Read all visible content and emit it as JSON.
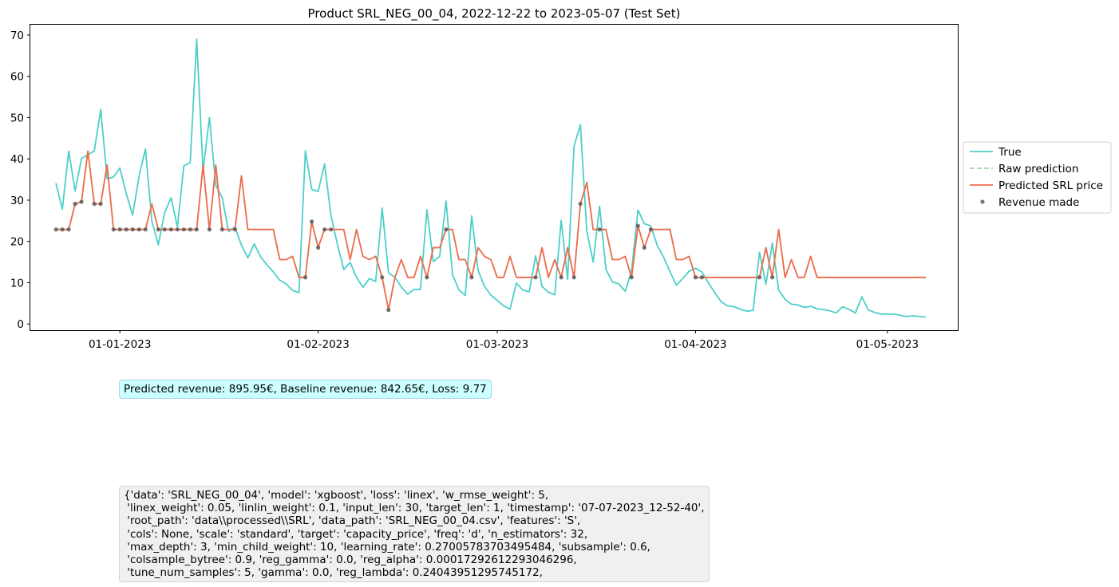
{
  "chart_data": {
    "type": "line",
    "title": "Product SRL_NEG_00_04, 2022-12-22 to 2023-05-07 (Test Set)",
    "xlabel": "",
    "ylabel": "",
    "x_range": [
      "2022-12-18",
      "2023-05-12"
    ],
    "ylim": [
      -1.5,
      72.5
    ],
    "y_ticks": [
      0,
      10,
      20,
      30,
      40,
      50,
      60,
      70
    ],
    "x_ticks": [
      {
        "date": "2023-01-01",
        "label": "01-01-2023"
      },
      {
        "date": "2023-02-01",
        "label": "01-02-2023"
      },
      {
        "date": "2023-03-01",
        "label": "01-03-2023"
      },
      {
        "date": "2023-04-01",
        "label": "01-04-2023"
      },
      {
        "date": "2023-05-01",
        "label": "01-05-2023"
      }
    ],
    "grid": false,
    "legend_position": "center-right outside",
    "start_date": "2022-12-22",
    "series": [
      {
        "name": "True",
        "color": "#4dcfc9",
        "style": "solid",
        "values": [
          34.1,
          27.8,
          41.9,
          32.2,
          40.1,
          41.0,
          41.9,
          52.0,
          35.2,
          35.6,
          37.8,
          31.6,
          26.4,
          35.8,
          42.4,
          24.9,
          19.2,
          27.0,
          30.6,
          23.5,
          38.3,
          39.1,
          69.0,
          37.2,
          50.0,
          33.6,
          30.6,
          22.4,
          23.5,
          19.1,
          16.0,
          19.4,
          16.3,
          14.3,
          12.6,
          10.6,
          9.7,
          8.1,
          7.6,
          42.0,
          32.6,
          32.1,
          38.8,
          26.4,
          19.3,
          13.2,
          14.9,
          11.3,
          8.9,
          11.0,
          10.3,
          28.1,
          12.4,
          11.3,
          9.0,
          7.2,
          8.4,
          8.4,
          27.7,
          15.1,
          16.4,
          29.8,
          12.0,
          8.3,
          6.9,
          26.2,
          13.0,
          9.1,
          7.0,
          5.7,
          4.4,
          3.6,
          9.9,
          8.2,
          7.8,
          16.5,
          9.1,
          7.7,
          7.1,
          25.1,
          10.8,
          43.1,
          48.3,
          22.5,
          15.0,
          28.5,
          13.2,
          10.2,
          9.7,
          7.9,
          12.9,
          27.6,
          24.3,
          23.8,
          19.1,
          16.2,
          12.7,
          9.4,
          11.0,
          12.8,
          13.5,
          12.6,
          10.0,
          7.6,
          5.4,
          4.4,
          4.2,
          3.6,
          3.1,
          3.3,
          17.4,
          9.6,
          19.6,
          8.2,
          6.0,
          4.8,
          4.6,
          4.0,
          4.3,
          3.7,
          3.5,
          3.2,
          2.7,
          4.2,
          3.5,
          2.7,
          6.6,
          3.4,
          2.8,
          2.4,
          2.4,
          2.4,
          2.1,
          1.8,
          2.0,
          1.8,
          1.7
        ]
      },
      {
        "name": "Raw prediction",
        "color": "#a8d4a8",
        "style": "dashed",
        "values": [
          22.9,
          22.9,
          22.9,
          29.1,
          29.6,
          41.9,
          29.1,
          29.1,
          38.5,
          22.9,
          22.9,
          22.9,
          22.9,
          22.9,
          22.9,
          29.1,
          22.9,
          22.9,
          22.9,
          22.9,
          22.9,
          22.9,
          22.9,
          38.5,
          22.9,
          38.5,
          22.9,
          22.9,
          22.9,
          35.9,
          22.9,
          22.9,
          22.9,
          22.9,
          22.9,
          15.6,
          15.6,
          16.4,
          11.3,
          11.3,
          24.8,
          18.5,
          22.9,
          22.9,
          22.9,
          22.9,
          15.6,
          22.9,
          16.4,
          15.6,
          16.4,
          11.3,
          3.4,
          11.3,
          15.6,
          11.3,
          11.3,
          16.4,
          11.3,
          18.5,
          18.5,
          22.9,
          22.9,
          15.6,
          15.6,
          11.3,
          18.5,
          16.4,
          15.6,
          11.3,
          11.3,
          16.4,
          11.3,
          11.3,
          11.3,
          11.3,
          18.5,
          11.3,
          15.6,
          11.3,
          18.5,
          11.3,
          29.1,
          34.3,
          22.9,
          22.9,
          22.9,
          15.6,
          15.6,
          16.4,
          11.3,
          23.8,
          18.5,
          22.9,
          22.9,
          22.9,
          22.9,
          15.6,
          15.6,
          16.4,
          11.3,
          11.3,
          11.3,
          11.3,
          11.3,
          11.3,
          11.3,
          11.3,
          11.3,
          11.3,
          11.3,
          18.5,
          11.3,
          22.9,
          11.3,
          15.6,
          11.3,
          11.3,
          16.4,
          11.3,
          11.3,
          11.3,
          11.3,
          11.3,
          11.3,
          11.3,
          11.3,
          11.3,
          11.3,
          11.3,
          11.3,
          11.3,
          11.3,
          11.3,
          11.3,
          11.3,
          11.3
        ]
      },
      {
        "name": "Predicted SRL price",
        "color": "#ee6c4d",
        "style": "solid",
        "values": [
          22.9,
          22.9,
          22.9,
          29.1,
          29.6,
          41.9,
          29.1,
          29.1,
          38.5,
          22.9,
          22.9,
          22.9,
          22.9,
          22.9,
          22.9,
          29.1,
          22.9,
          22.9,
          22.9,
          22.9,
          22.9,
          22.9,
          22.9,
          38.5,
          22.9,
          38.5,
          22.9,
          22.9,
          22.9,
          35.9,
          22.9,
          22.9,
          22.9,
          22.9,
          22.9,
          15.6,
          15.6,
          16.4,
          11.3,
          11.3,
          24.8,
          18.5,
          22.9,
          22.9,
          22.9,
          22.9,
          15.6,
          22.9,
          16.4,
          15.6,
          16.4,
          11.3,
          3.4,
          11.3,
          15.6,
          11.3,
          11.3,
          16.4,
          11.3,
          18.5,
          18.5,
          22.9,
          22.9,
          15.6,
          15.6,
          11.3,
          18.5,
          16.4,
          15.6,
          11.3,
          11.3,
          16.4,
          11.3,
          11.3,
          11.3,
          11.3,
          18.5,
          11.3,
          15.6,
          11.3,
          18.5,
          11.3,
          29.1,
          34.3,
          22.9,
          22.9,
          22.9,
          15.6,
          15.6,
          16.4,
          11.3,
          23.8,
          18.5,
          22.9,
          22.9,
          22.9,
          22.9,
          15.6,
          15.6,
          16.4,
          11.3,
          11.3,
          11.3,
          11.3,
          11.3,
          11.3,
          11.3,
          11.3,
          11.3,
          11.3,
          11.3,
          18.5,
          11.3,
          22.9,
          11.3,
          15.6,
          11.3,
          11.3,
          16.4,
          11.3,
          11.3,
          11.3,
          11.3,
          11.3,
          11.3,
          11.3,
          11.3,
          11.3,
          11.3,
          11.3,
          11.3,
          11.3,
          11.3,
          11.3,
          11.3,
          11.3,
          11.3
        ]
      },
      {
        "name": "Revenue made",
        "color": "#555555",
        "style": "markers",
        "points": [
          [
            0,
            22.9
          ],
          [
            1,
            22.9
          ],
          [
            2,
            22.9
          ],
          [
            3,
            29.1
          ],
          [
            4,
            29.6
          ],
          [
            6,
            29.1
          ],
          [
            7,
            29.1
          ],
          [
            9,
            22.9
          ],
          [
            10,
            22.9
          ],
          [
            11,
            22.9
          ],
          [
            12,
            22.9
          ],
          [
            13,
            22.9
          ],
          [
            14,
            22.9
          ],
          [
            16,
            22.9
          ],
          [
            17,
            22.9
          ],
          [
            18,
            22.9
          ],
          [
            19,
            22.9
          ],
          [
            20,
            22.9
          ],
          [
            21,
            22.9
          ],
          [
            22,
            22.9
          ],
          [
            24,
            22.9
          ],
          [
            26,
            22.9
          ],
          [
            28,
            22.9
          ],
          [
            39,
            11.3
          ],
          [
            40,
            24.8
          ],
          [
            41,
            18.5
          ],
          [
            42,
            22.9
          ],
          [
            43,
            22.9
          ],
          [
            51,
            11.3
          ],
          [
            52,
            3.4
          ],
          [
            58,
            11.3
          ],
          [
            61,
            22.9
          ],
          [
            65,
            11.3
          ],
          [
            75,
            11.3
          ],
          [
            79,
            11.3
          ],
          [
            81,
            11.3
          ],
          [
            82,
            29.1
          ],
          [
            85,
            22.9
          ],
          [
            90,
            11.3
          ],
          [
            91,
            23.8
          ],
          [
            92,
            18.5
          ],
          [
            93,
            22.9
          ],
          [
            100,
            11.3
          ],
          [
            101,
            11.3
          ],
          [
            110,
            11.3
          ],
          [
            112,
            11.3
          ]
        ]
      }
    ]
  },
  "annotations": {
    "revenue_text": "Predicted revenue: 895.95€, Baseline revenue: 842.65€, Loss: 9.77",
    "config_lines": [
      "{'data': 'SRL_NEG_00_04', 'model': 'xgboost', 'loss': 'linex', 'w_rmse_weight': 5,",
      " 'linex_weight': 0.05, 'linlin_weight': 0.1, 'input_len': 30, 'target_len': 1, 'timestamp': '07-07-2023_12-52-40',",
      " 'root_path': 'data\\\\processed\\\\SRL', 'data_path': 'SRL_NEG_00_04.csv', 'features': 'S',",
      " 'cols': None, 'scale': 'standard', 'target': 'capacity_price', 'freq': 'd', 'n_estimators': 32,",
      " 'max_depth': 3, 'min_child_weight': 10, 'learning_rate': 0.27005783703495484, 'subsample': 0.6,",
      " 'colsample_bytree': 0.9, 'reg_gamma': 0.0, 'reg_alpha': 0.00017292612293046296,",
      " 'tune_num_samples': 5, 'gamma': 0.0, 'reg_lambda': 0.24043951295745172,"
    ]
  }
}
